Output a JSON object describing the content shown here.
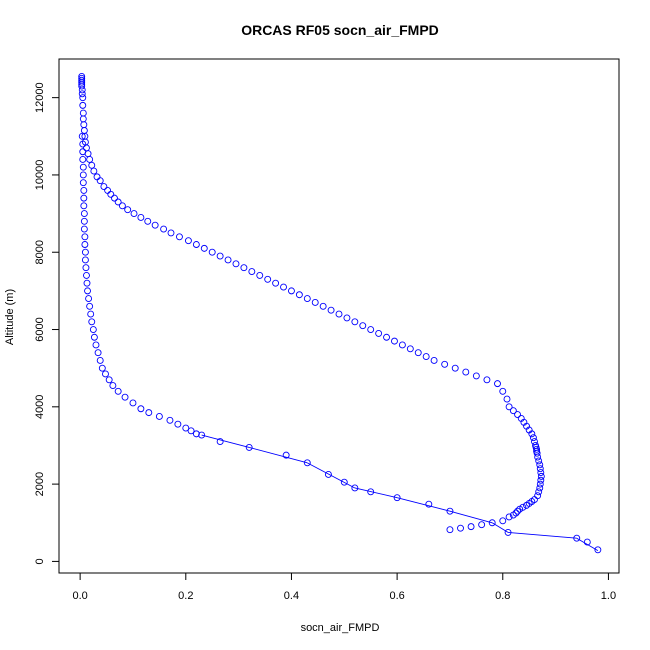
{
  "chart_data": {
    "type": "scatter",
    "title": "ORCAS RF05 socn_air_FMPD",
    "xlabel": "socn_air_FMPD",
    "ylabel": "Altitude (m)",
    "xlim": [
      -0.04,
      1.02
    ],
    "ylim": [
      -300,
      13000
    ],
    "x_ticks": [
      0.0,
      0.2,
      0.4,
      0.6,
      0.8,
      1.0
    ],
    "x_tick_labels": [
      "0.0",
      "0.2",
      "0.4",
      "0.6",
      "0.8",
      "1.0"
    ],
    "y_ticks": [
      0,
      2000,
      4000,
      6000,
      8000,
      10000,
      12000
    ],
    "y_tick_labels": [
      "0",
      "2000",
      "4000",
      "6000",
      "8000",
      "10000",
      "12000"
    ],
    "grid": false,
    "legend": "none",
    "colors": {
      "points": "#0000ff",
      "axes": "#000000"
    },
    "series": [
      {
        "points": [
          [
            0.003,
            12550
          ],
          [
            0.003,
            12500
          ],
          [
            0.003,
            12450
          ],
          [
            0.003,
            12400
          ],
          [
            0.003,
            12350
          ],
          [
            0.003,
            12300
          ],
          [
            0.004,
            12200
          ],
          [
            0.004,
            12100
          ],
          [
            0.005,
            12000
          ],
          [
            0.005,
            11800
          ],
          [
            0.006,
            11600
          ],
          [
            0.006,
            11450
          ],
          [
            0.007,
            11300
          ],
          [
            0.008,
            11150
          ],
          [
            0.009,
            11000
          ],
          [
            0.01,
            10850
          ],
          [
            0.012,
            10700
          ],
          [
            0.015,
            10550
          ],
          [
            0.018,
            10400
          ],
          [
            0.022,
            10250
          ],
          [
            0.026,
            10100
          ],
          [
            0.032,
            9950
          ],
          [
            0.038,
            9850
          ],
          [
            0.045,
            9700
          ],
          [
            0.052,
            9600
          ],
          [
            0.058,
            9500
          ],
          [
            0.065,
            9400
          ],
          [
            0.072,
            9300
          ],
          [
            0.08,
            9200
          ],
          [
            0.09,
            9100
          ],
          [
            0.102,
            9000
          ],
          [
            0.115,
            8900
          ],
          [
            0.128,
            8800
          ],
          [
            0.142,
            8700
          ],
          [
            0.158,
            8600
          ],
          [
            0.172,
            8500
          ],
          [
            0.188,
            8400
          ],
          [
            0.205,
            8300
          ],
          [
            0.22,
            8200
          ],
          [
            0.235,
            8100
          ],
          [
            0.25,
            8000
          ],
          [
            0.265,
            7900
          ],
          [
            0.28,
            7800
          ],
          [
            0.295,
            7700
          ],
          [
            0.31,
            7600
          ],
          [
            0.325,
            7500
          ],
          [
            0.34,
            7400
          ],
          [
            0.355,
            7300
          ],
          [
            0.37,
            7200
          ],
          [
            0.385,
            7100
          ],
          [
            0.4,
            7000
          ],
          [
            0.415,
            6900
          ],
          [
            0.43,
            6800
          ],
          [
            0.445,
            6700
          ],
          [
            0.46,
            6600
          ],
          [
            0.475,
            6500
          ],
          [
            0.49,
            6400
          ],
          [
            0.505,
            6300
          ],
          [
            0.52,
            6200
          ],
          [
            0.535,
            6100
          ],
          [
            0.55,
            6000
          ],
          [
            0.565,
            5900
          ],
          [
            0.58,
            5800
          ],
          [
            0.595,
            5700
          ],
          [
            0.61,
            5600
          ],
          [
            0.625,
            5500
          ],
          [
            0.64,
            5400
          ],
          [
            0.655,
            5300
          ],
          [
            0.67,
            5200
          ],
          [
            0.69,
            5100
          ],
          [
            0.71,
            5000
          ],
          [
            0.73,
            4900
          ],
          [
            0.75,
            4800
          ],
          [
            0.77,
            4700
          ],
          [
            0.79,
            4600
          ],
          [
            0.8,
            4400
          ],
          [
            0.808,
            4200
          ],
          [
            0.812,
            4000
          ],
          [
            0.82,
            3900
          ],
          [
            0.828,
            3800
          ],
          [
            0.835,
            3700
          ],
          [
            0.84,
            3600
          ],
          [
            0.845,
            3500
          ],
          [
            0.85,
            3400
          ],
          [
            0.855,
            3300
          ],
          [
            0.858,
            3200
          ],
          [
            0.86,
            3100
          ],
          [
            0.862,
            3000
          ],
          [
            0.863,
            2950
          ],
          [
            0.864,
            2900
          ],
          [
            0.864,
            2850
          ],
          [
            0.865,
            2800
          ],
          [
            0.866,
            2700
          ],
          [
            0.868,
            2600
          ],
          [
            0.87,
            2500
          ],
          [
            0.871,
            2400
          ],
          [
            0.872,
            2300
          ],
          [
            0.873,
            2200
          ],
          [
            0.872,
            2100
          ],
          [
            0.871,
            2000
          ],
          [
            0.87,
            1900
          ],
          [
            0.868,
            1800
          ],
          [
            0.866,
            1700
          ],
          [
            0.86,
            1600
          ],
          [
            0.855,
            1550
          ],
          [
            0.85,
            1500
          ],
          [
            0.845,
            1450
          ],
          [
            0.838,
            1400
          ],
          [
            0.832,
            1350
          ],
          [
            0.828,
            1300
          ],
          [
            0.825,
            1250
          ],
          [
            0.82,
            1200
          ],
          [
            0.812,
            1150
          ],
          [
            0.8,
            1050
          ],
          [
            0.78,
            1000
          ],
          [
            0.76,
            950
          ],
          [
            0.74,
            900
          ],
          [
            0.72,
            860
          ],
          [
            0.7,
            820
          ],
          [
            0.81,
            750
          ],
          [
            0.94,
            600
          ],
          [
            0.96,
            500
          ],
          [
            0.98,
            300
          ],
          [
            0.7,
            1300
          ],
          [
            0.66,
            1480
          ],
          [
            0.6,
            1650
          ],
          [
            0.55,
            1800
          ],
          [
            0.52,
            1900
          ],
          [
            0.5,
            2050
          ],
          [
            0.47,
            2250
          ],
          [
            0.43,
            2550
          ],
          [
            0.39,
            2750
          ],
          [
            0.32,
            2950
          ],
          [
            0.265,
            3100
          ],
          [
            0.23,
            3270
          ],
          [
            0.22,
            3300
          ],
          [
            0.21,
            3380
          ],
          [
            0.2,
            3450
          ],
          [
            0.185,
            3550
          ],
          [
            0.17,
            3650
          ],
          [
            0.15,
            3750
          ],
          [
            0.13,
            3850
          ],
          [
            0.115,
            3950
          ],
          [
            0.1,
            4100
          ],
          [
            0.085,
            4250
          ],
          [
            0.072,
            4400
          ],
          [
            0.062,
            4550
          ],
          [
            0.055,
            4700
          ],
          [
            0.048,
            4850
          ],
          [
            0.042,
            5000
          ],
          [
            0.038,
            5200
          ],
          [
            0.034,
            5400
          ],
          [
            0.03,
            5600
          ],
          [
            0.027,
            5800
          ],
          [
            0.025,
            6000
          ],
          [
            0.022,
            6200
          ],
          [
            0.02,
            6400
          ],
          [
            0.018,
            6600
          ],
          [
            0.016,
            6800
          ],
          [
            0.014,
            7000
          ],
          [
            0.013,
            7200
          ],
          [
            0.012,
            7400
          ],
          [
            0.011,
            7600
          ],
          [
            0.01,
            7800
          ],
          [
            0.01,
            8000
          ],
          [
            0.009,
            8200
          ],
          [
            0.009,
            8400
          ],
          [
            0.008,
            8600
          ],
          [
            0.008,
            8800
          ],
          [
            0.008,
            9000
          ],
          [
            0.007,
            9200
          ],
          [
            0.007,
            9400
          ],
          [
            0.007,
            9600
          ],
          [
            0.006,
            9800
          ],
          [
            0.006,
            10000
          ],
          [
            0.006,
            10200
          ],
          [
            0.005,
            10400
          ],
          [
            0.005,
            10600
          ],
          [
            0.005,
            10800
          ],
          [
            0.004,
            11000
          ]
        ]
      }
    ],
    "connected_segments": [
      [
        [
          0.98,
          280
        ],
        [
          0.94,
          600
        ],
        [
          0.81,
          750
        ],
        [
          0.78,
          1000
        ],
        [
          0.7,
          1300
        ],
        [
          0.6,
          1650
        ],
        [
          0.52,
          1900
        ],
        [
          0.43,
          2550
        ],
        [
          0.32,
          2950
        ],
        [
          0.23,
          3270
        ]
      ]
    ]
  }
}
